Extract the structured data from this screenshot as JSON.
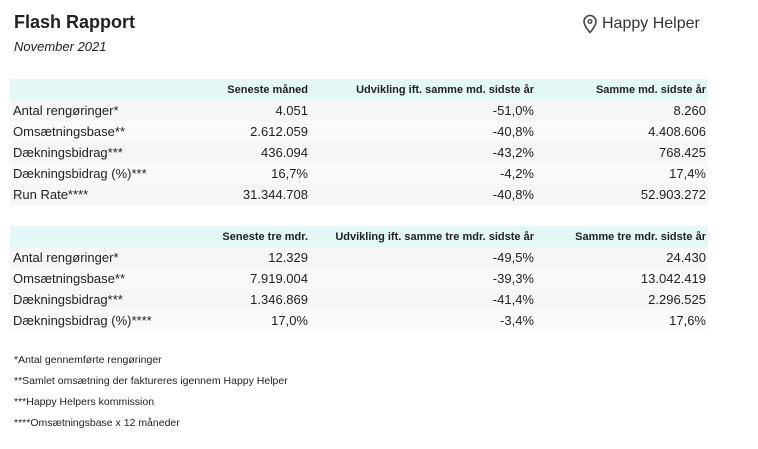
{
  "header": {
    "title": "Flash Rapport",
    "subtitle": "November 2021",
    "logo": "Happy Helper"
  },
  "tables": [
    {
      "columns": [
        "",
        "Seneste måned",
        "Udvikling ift. samme md. sidste år",
        "Samme md. sidste år"
      ],
      "rows": [
        [
          "Antal rengøringer*",
          "4.051",
          "-51,0%",
          "8.260"
        ],
        [
          "Omsætningsbase**",
          "2.612.059",
          "-40,8%",
          "4.408.606"
        ],
        [
          "Dækningsbidrag***",
          "436.094",
          "-43,2%",
          "768.425"
        ],
        [
          "Dækningsbidrag (%)***",
          "16,7%",
          "-4,2%",
          "17,4%"
        ],
        [
          "Run Rate****",
          "31.344.708",
          "-40,8%",
          "52.903.272"
        ]
      ]
    },
    {
      "columns": [
        "",
        "Seneste tre mdr.",
        "Udvikling ift. samme tre mdr. sidste år",
        "Samme tre mdr. sidste år"
      ],
      "rows": [
        [
          "Antal rengøringer*",
          "12.329",
          "-49,5%",
          "24.430"
        ],
        [
          "Omsætningsbase**",
          "7.919.004",
          "-39,3%",
          "13.042.419"
        ],
        [
          "Dækningsbidrag***",
          "1.346.869",
          "-41,4%",
          "2.296.525"
        ],
        [
          "Dækningsbidrag (%)****",
          "17,0%",
          "-3,4%",
          "17,6%"
        ]
      ]
    }
  ],
  "footnotes": [
    "*Antal gennemførte rengøringer",
    "**Samlet omsætning der faktureres igennem Happy Helper",
    "***Happy Helpers kommission",
    "****Omsætningsbase x 12 måneder"
  ]
}
